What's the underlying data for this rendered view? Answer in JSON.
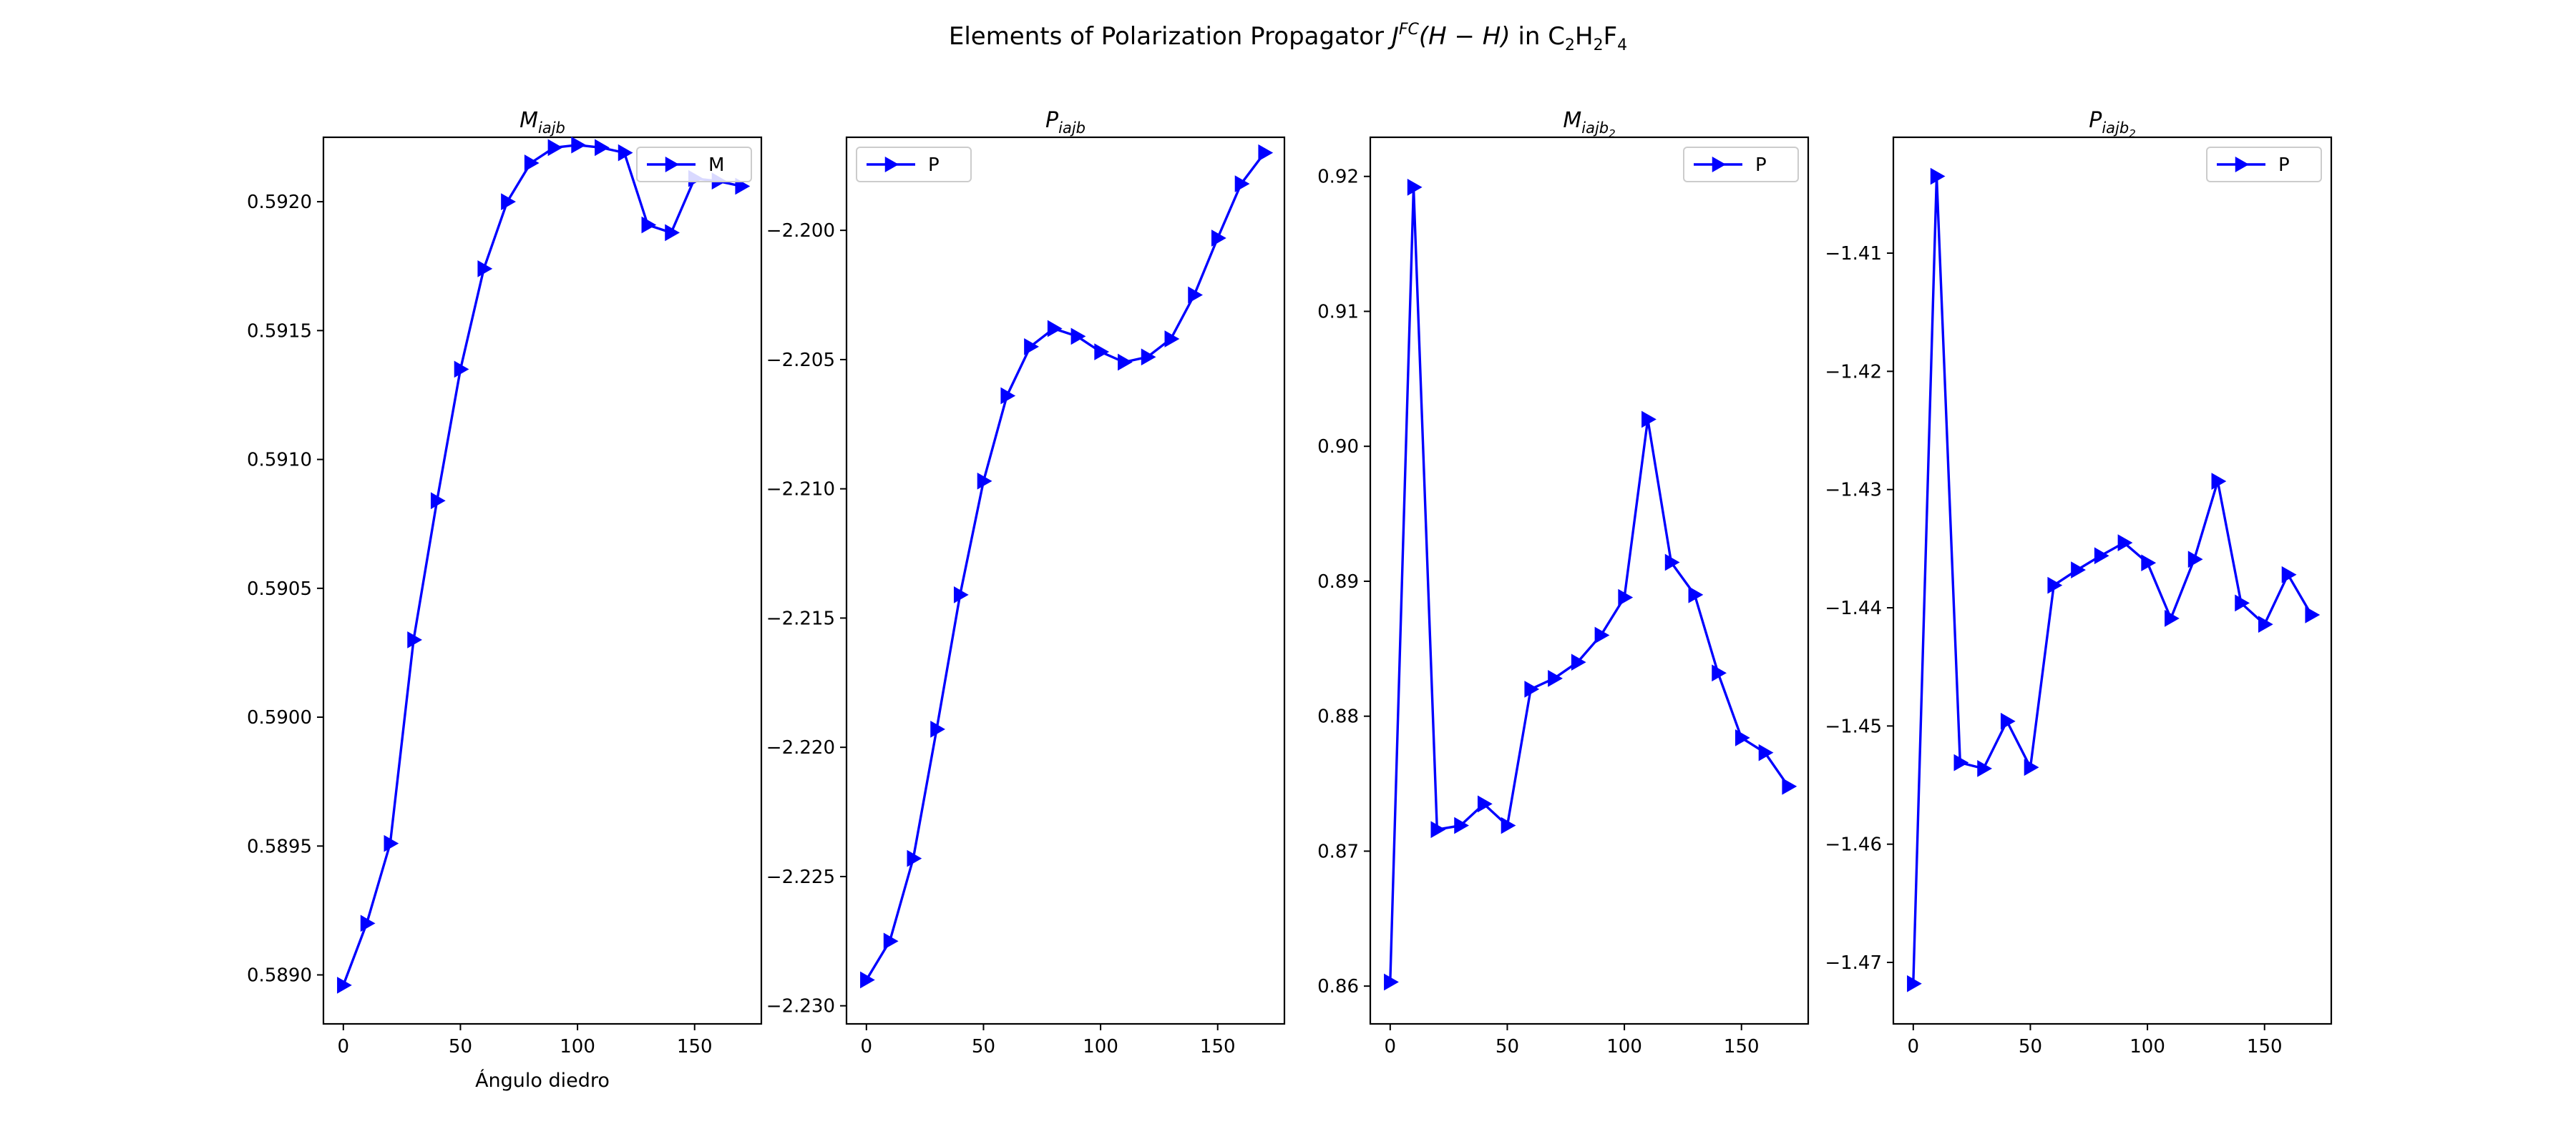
{
  "figure": {
    "title_main": "Elements of Polarization Propagator ",
    "title_j": "J",
    "title_j_sup": "FC",
    "title_args": "(H − H)",
    "title_suffix": " in C",
    "title_c_sub": "2",
    "title_h": "H",
    "title_h_sub": "2",
    "title_f": "F",
    "title_f_sub": "4"
  },
  "chart_data": [
    {
      "type": "line",
      "title_base": "M",
      "title_sub": "iajb",
      "title_subsub": "",
      "xlabel": "Ángulo diedro",
      "legend": "M",
      "legend_loc": "upper right",
      "color": "#0000ff",
      "marker": "triangle-right",
      "xlim": [
        -8.5,
        178.5
      ],
      "ylim": [
        0.58881,
        0.59225
      ],
      "xticks": [
        0,
        50,
        100,
        150
      ],
      "yticks": [
        0.589,
        0.5895,
        0.59,
        0.5905,
        0.591,
        0.5915,
        0.592
      ],
      "ytick_labels": [
        "0.5890",
        "0.5895",
        "0.5900",
        "0.5905",
        "0.5910",
        "0.5915",
        "0.5920"
      ],
      "x": [
        0,
        10,
        20,
        30,
        40,
        50,
        60,
        70,
        80,
        90,
        100,
        110,
        120,
        130,
        140,
        150,
        160,
        170
      ],
      "y": [
        0.58896,
        0.5892,
        0.58951,
        0.5903,
        0.59084,
        0.59135,
        0.59174,
        0.592,
        0.59215,
        0.59221,
        0.59222,
        0.59221,
        0.59219,
        0.59191,
        0.59188,
        0.59209,
        0.59208,
        0.59206
      ]
    },
    {
      "type": "line",
      "title_base": "P",
      "title_sub": "iajb",
      "title_subsub": "",
      "xlabel": "",
      "legend": "P",
      "legend_loc": "upper left",
      "color": "#0000ff",
      "marker": "triangle-right",
      "xlim": [
        -8.5,
        178.5
      ],
      "ylim": [
        -2.2307,
        -2.1964
      ],
      "xticks": [
        0,
        50,
        100,
        150
      ],
      "yticks": [
        -2.23,
        -2.225,
        -2.22,
        -2.215,
        -2.21,
        -2.205,
        -2.2
      ],
      "ytick_labels": [
        "−2.230",
        "−2.225",
        "−2.220",
        "−2.215",
        "−2.210",
        "−2.205",
        "−2.200"
      ],
      "x": [
        0,
        10,
        20,
        30,
        40,
        50,
        60,
        70,
        80,
        90,
        100,
        110,
        120,
        130,
        140,
        150,
        160,
        170
      ],
      "y": [
        -2.229,
        -2.2275,
        -2.2243,
        -2.2193,
        -2.2141,
        -2.2097,
        -2.2064,
        -2.2045,
        -2.2038,
        -2.2041,
        -2.2047,
        -2.2051,
        -2.2049,
        -2.2042,
        -2.2025,
        -2.2003,
        -2.1982,
        -2.197
      ]
    },
    {
      "type": "line",
      "title_base": "M",
      "title_sub": "iajb",
      "title_subsub": "2",
      "xlabel": "",
      "legend": "P",
      "legend_loc": "upper right",
      "color": "#0000ff",
      "marker": "triangle-right",
      "xlim": [
        -8.5,
        178.5
      ],
      "ylim": [
        0.8572,
        0.9229
      ],
      "xticks": [
        0,
        50,
        100,
        150
      ],
      "yticks": [
        0.86,
        0.87,
        0.88,
        0.89,
        0.9,
        0.91,
        0.92
      ],
      "ytick_labels": [
        "0.86",
        "0.87",
        "0.88",
        "0.89",
        "0.90",
        "0.91",
        "0.92"
      ],
      "x": [
        0,
        10,
        20,
        30,
        40,
        50,
        60,
        70,
        80,
        90,
        100,
        110,
        120,
        130,
        140,
        150,
        160,
        170
      ],
      "y": [
        0.8603,
        0.9192,
        0.8716,
        0.8719,
        0.8735,
        0.8719,
        0.882,
        0.8828,
        0.884,
        0.886,
        0.8888,
        0.902,
        0.8914,
        0.889,
        0.8832,
        0.8784,
        0.8773,
        0.8748
      ]
    },
    {
      "type": "line",
      "title_base": "P",
      "title_sub": "iajb",
      "title_subsub": "2",
      "xlabel": "",
      "legend": "P",
      "legend_loc": "upper right",
      "color": "#0000ff",
      "marker": "triangle-right",
      "xlim": [
        -8.5,
        178.5
      ],
      "ylim": [
        -1.4752,
        -1.4002
      ],
      "xticks": [
        0,
        50,
        100,
        150
      ],
      "yticks": [
        -1.47,
        -1.46,
        -1.45,
        -1.44,
        -1.43,
        -1.42,
        -1.41
      ],
      "ytick_labels": [
        "−1.47",
        "−1.46",
        "−1.45",
        "−1.44",
        "−1.43",
        "−1.42",
        "−1.41"
      ],
      "x": [
        0,
        10,
        20,
        30,
        40,
        50,
        60,
        70,
        80,
        90,
        100,
        110,
        120,
        130,
        140,
        150,
        160,
        170
      ],
      "y": [
        -1.4718,
        -1.4035,
        -1.4531,
        -1.4536,
        -1.4496,
        -1.4535,
        -1.4381,
        -1.4368,
        -1.4356,
        -1.4345,
        -1.4362,
        -1.4409,
        -1.4359,
        -1.4293,
        -1.4396,
        -1.4414,
        -1.4372,
        -1.4406
      ]
    }
  ]
}
